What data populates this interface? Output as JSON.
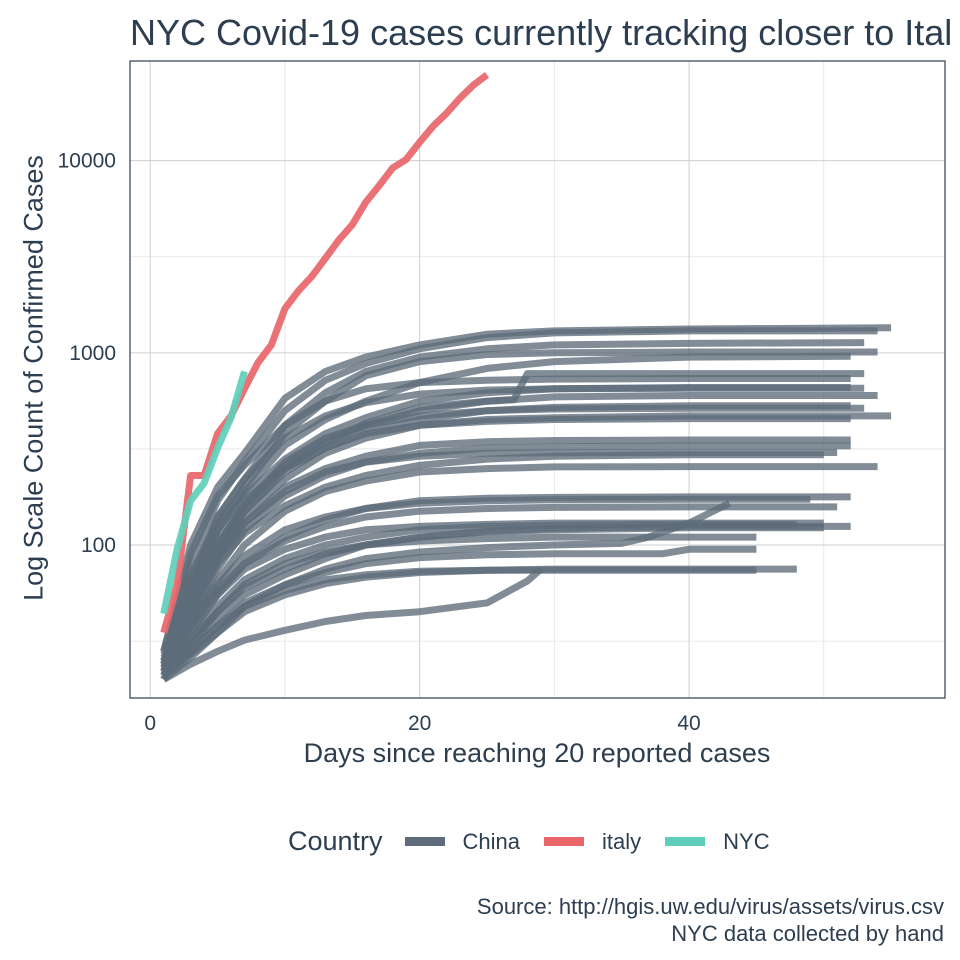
{
  "chart_data": {
    "type": "line",
    "title": "NYC Covid-19 cases currently tracking closer to Ital",
    "xlabel": "Days since reaching 20 reported cases",
    "ylabel": "Log Scale Count of Confirmed Cases",
    "y_scale": "log10",
    "xlim": [
      -1.5,
      59
    ],
    "ylim": [
      16,
      33000
    ],
    "x_ticks": [
      0,
      20,
      40
    ],
    "y_ticks": [
      100,
      1000,
      10000
    ],
    "x_tick_labels": [
      "0",
      "20",
      "40"
    ],
    "y_tick_labels": [
      "100",
      "1000",
      "10000"
    ],
    "grid": true,
    "legend": {
      "title": "Country",
      "position": "bottom",
      "entries": [
        {
          "label": "China",
          "color": "#5d6b7a"
        },
        {
          "label": "italy",
          "color": "#e8666a"
        },
        {
          "label": "NYC",
          "color": "#5fcfbb"
        }
      ]
    },
    "caption": [
      "Source: http://hgis.uw.edu/virus/assets/virus.csv",
      "NYC data collected by hand"
    ],
    "series": [
      {
        "country": "italy",
        "x": [
          1,
          2,
          3,
          4,
          5,
          6,
          7,
          8,
          9,
          10,
          11,
          12,
          13,
          14,
          15,
          16,
          17,
          18,
          19,
          20,
          21,
          22,
          23,
          24,
          25
        ],
        "y": [
          35,
          62,
          230,
          230,
          380,
          470,
          650,
          890,
          1100,
          1700,
          2100,
          2500,
          3100,
          3860,
          4640,
          6070,
          7420,
          9170,
          10150,
          12460,
          15110,
          17660,
          21160,
          24750,
          27980
        ]
      },
      {
        "country": "NYC",
        "x": [
          1,
          2,
          3,
          4,
          5,
          6,
          7
        ],
        "y": [
          44,
          95,
          170,
          210,
          320,
          460,
          800
        ]
      },
      {
        "country": "China",
        "x": [
          1,
          3,
          5,
          7,
          10,
          13,
          16,
          20,
          25,
          30,
          40,
          55
        ],
        "y": [
          28,
          100,
          200,
          300,
          580,
          800,
          950,
          1100,
          1250,
          1300,
          1330,
          1350
        ]
      },
      {
        "country": "China",
        "x": [
          1,
          3,
          5,
          7,
          10,
          13,
          16,
          20,
          25,
          30,
          40,
          54
        ],
        "y": [
          24,
          80,
          170,
          270,
          500,
          720,
          880,
          1050,
          1200,
          1270,
          1300,
          1300
        ]
      },
      {
        "country": "China",
        "x": [
          1,
          3,
          5,
          7,
          10,
          13,
          16,
          20,
          25,
          30,
          40,
          53
        ],
        "y": [
          22,
          60,
          140,
          220,
          420,
          620,
          800,
          950,
          1050,
          1100,
          1120,
          1130
        ]
      },
      {
        "country": "China",
        "x": [
          1,
          3,
          5,
          7,
          10,
          13,
          16,
          20,
          25,
          30,
          40,
          54
        ],
        "y": [
          22,
          55,
          120,
          200,
          380,
          560,
          760,
          900,
          980,
          1000,
          1010,
          1010
        ]
      },
      {
        "country": "China",
        "x": [
          1,
          3,
          5,
          7,
          10,
          13,
          16,
          20,
          25,
          30,
          40,
          52
        ],
        "y": [
          25,
          70,
          130,
          190,
          330,
          450,
          560,
          700,
          830,
          900,
          950,
          960
        ]
      },
      {
        "country": "China",
        "x": [
          1,
          3,
          5,
          7,
          10,
          13,
          16,
          20,
          25,
          27,
          28,
          35,
          45,
          53
        ],
        "y": [
          22,
          45,
          95,
          150,
          250,
          340,
          430,
          520,
          560,
          570,
          780,
          780,
          780,
          780
        ]
      },
      {
        "country": "China",
        "x": [
          1,
          3,
          5,
          7,
          10,
          13,
          16,
          20,
          25,
          30,
          40,
          52
        ],
        "y": [
          24,
          60,
          120,
          180,
          280,
          380,
          460,
          560,
          620,
          650,
          660,
          660
        ]
      },
      {
        "country": "China",
        "x": [
          1,
          3,
          5,
          7,
          10,
          13,
          16,
          20,
          25,
          30,
          40,
          54
        ],
        "y": [
          21,
          50,
          100,
          160,
          260,
          350,
          420,
          500,
          560,
          590,
          600,
          600
        ]
      },
      {
        "country": "China",
        "x": [
          1,
          3,
          5,
          7,
          10,
          13,
          16,
          20,
          25,
          30,
          40,
          52
        ],
        "y": [
          23,
          55,
          110,
          170,
          250,
          320,
          390,
          450,
          500,
          520,
          530,
          530
        ]
      },
      {
        "country": "China",
        "x": [
          1,
          3,
          5,
          7,
          10,
          13,
          16,
          20,
          25,
          30,
          40,
          55
        ],
        "y": [
          20,
          45,
          85,
          140,
          220,
          300,
          360,
          420,
          450,
          460,
          470,
          470
        ]
      },
      {
        "country": "China",
        "x": [
          1,
          3,
          5,
          7,
          10,
          13,
          16,
          20,
          25,
          30,
          40,
          52
        ],
        "y": [
          24,
          50,
          90,
          130,
          200,
          250,
          290,
          330,
          345,
          350,
          352,
          352
        ]
      },
      {
        "country": "China",
        "x": [
          1,
          3,
          5,
          7,
          10,
          13,
          16,
          20,
          25,
          30,
          40,
          52
        ],
        "y": [
          21,
          40,
          75,
          120,
          180,
          230,
          270,
          300,
          320,
          325,
          328,
          328
        ]
      },
      {
        "country": "China",
        "x": [
          1,
          3,
          5,
          7,
          10,
          13,
          16,
          20,
          25,
          30,
          40,
          50
        ],
        "y": [
          22,
          42,
          80,
          115,
          160,
          200,
          230,
          260,
          280,
          290,
          295,
          295
        ]
      },
      {
        "country": "China",
        "x": [
          1,
          3,
          5,
          7,
          10,
          13,
          16,
          20,
          25,
          30,
          40,
          54
        ],
        "y": [
          23,
          38,
          65,
          100,
          150,
          190,
          215,
          240,
          250,
          255,
          256,
          256
        ]
      },
      {
        "country": "China",
        "x": [
          1,
          3,
          5,
          7,
          10,
          13,
          16,
          20,
          25,
          30,
          40,
          52
        ],
        "y": [
          22,
          35,
          55,
          80,
          110,
          135,
          155,
          170,
          175,
          177,
          178,
          178
        ]
      },
      {
        "country": "China",
        "x": [
          1,
          3,
          5,
          7,
          10,
          13,
          16,
          20,
          25,
          30,
          40,
          51
        ],
        "y": [
          24,
          38,
          58,
          80,
          105,
          125,
          140,
          150,
          155,
          157,
          158,
          158
        ]
      },
      {
        "country": "China",
        "x": [
          1,
          3,
          5,
          7,
          10,
          13,
          16,
          20,
          25,
          30,
          40,
          48
        ],
        "y": [
          21,
          32,
          48,
          66,
          85,
          100,
          110,
          120,
          125,
          127,
          128,
          128
        ]
      },
      {
        "country": "China",
        "x": [
          1,
          3,
          5,
          7,
          10,
          13,
          16,
          20,
          25,
          30,
          40,
          50
        ],
        "y": [
          22,
          30,
          42,
          55,
          70,
          85,
          100,
          110,
          117,
          120,
          123,
          123
        ]
      },
      {
        "country": "China",
        "x": [
          1,
          3,
          5,
          7,
          10,
          13,
          16,
          20,
          25,
          30,
          35,
          37,
          40,
          43
        ],
        "y": [
          20,
          26,
          35,
          48,
          62,
          75,
          85,
          92,
          97,
          100,
          102,
          110,
          130,
          165
        ]
      },
      {
        "country": "China",
        "x": [
          1,
          3,
          5,
          7,
          10,
          13,
          16,
          20,
          25,
          30,
          35,
          38,
          40,
          45
        ],
        "y": [
          22,
          28,
          38,
          50,
          62,
          72,
          80,
          86,
          89,
          90,
          90,
          90,
          95,
          95
        ]
      },
      {
        "country": "China",
        "x": [
          1,
          3,
          5,
          7,
          10,
          13,
          16,
          20,
          25,
          30,
          40,
          48
        ],
        "y": [
          21,
          27,
          35,
          45,
          55,
          63,
          68,
          72,
          74,
          75,
          75,
          75
        ]
      },
      {
        "country": "China",
        "x": [
          1,
          3,
          5,
          7,
          10,
          13,
          16,
          20,
          25,
          28,
          29
        ],
        "y": [
          20,
          24,
          28,
          32,
          36,
          40,
          43,
          45,
          50,
          65,
          75
        ]
      },
      {
        "country": "China",
        "x": [
          1,
          3,
          5,
          7,
          10,
          13,
          16,
          20,
          25,
          30,
          40,
          52
        ],
        "y": [
          23,
          32,
          45,
          60,
          75,
          90,
          100,
          110,
          118,
          122,
          125,
          125
        ]
      },
      {
        "country": "China",
        "x": [
          1,
          3,
          5,
          7,
          10,
          13,
          16,
          20,
          25,
          30,
          40,
          49
        ],
        "y": [
          25,
          40,
          62,
          88,
          120,
          140,
          155,
          165,
          170,
          172,
          173,
          173
        ]
      },
      {
        "country": "China",
        "x": [
          1,
          3,
          5,
          7,
          10,
          13,
          16,
          20,
          25,
          30,
          40,
          52
        ],
        "y": [
          26,
          48,
          90,
          150,
          240,
          320,
          380,
          420,
          440,
          450,
          455,
          455
        ]
      },
      {
        "country": "China",
        "x": [
          1,
          3,
          5,
          7,
          10,
          13,
          16,
          20,
          25,
          30,
          40,
          53
        ],
        "y": [
          25,
          50,
          100,
          160,
          270,
          360,
          420,
          470,
          500,
          510,
          515,
          515
        ]
      },
      {
        "country": "China",
        "x": [
          1,
          3,
          5,
          7,
          10,
          13,
          16,
          20,
          25,
          30,
          40,
          53
        ],
        "y": [
          27,
          65,
          140,
          220,
          360,
          470,
          550,
          610,
          640,
          650,
          655,
          655
        ]
      },
      {
        "country": "China",
        "x": [
          1,
          3,
          5,
          7,
          10,
          13,
          16,
          20,
          25,
          30,
          40,
          45
        ],
        "y": [
          22,
          30,
          45,
          62,
          80,
          92,
          100,
          105,
          108,
          110,
          110,
          110
        ]
      },
      {
        "country": "China",
        "x": [
          1,
          3,
          5,
          7,
          10,
          13,
          16,
          20,
          25,
          30,
          40,
          50
        ],
        "y": [
          24,
          36,
          55,
          75,
          95,
          110,
          120,
          125,
          128,
          130,
          130,
          130
        ]
      },
      {
        "country": "China",
        "x": [
          1,
          3,
          5,
          7,
          10,
          13,
          16,
          20,
          25,
          30,
          40,
          52
        ],
        "y": [
          28,
          90,
          180,
          260,
          420,
          560,
          650,
          700,
          720,
          730,
          735,
          735
        ]
      },
      {
        "country": "China",
        "x": [
          1,
          3,
          5,
          7,
          10,
          13,
          16,
          20,
          25,
          30,
          40,
          51
        ],
        "y": [
          23,
          45,
          85,
          130,
          190,
          240,
          270,
          290,
          300,
          302,
          303,
          303
        ]
      },
      {
        "country": "China",
        "x": [
          1,
          3,
          5,
          7,
          10,
          13,
          16,
          20,
          25,
          30,
          40,
          45
        ],
        "y": [
          21,
          28,
          38,
          48,
          58,
          66,
          70,
          73,
          74,
          74,
          74,
          74
        ]
      }
    ]
  }
}
